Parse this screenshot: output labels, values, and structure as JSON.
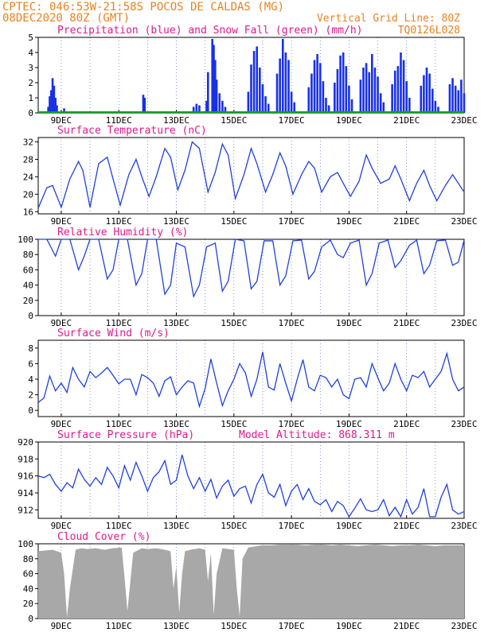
{
  "header": {
    "line1": "CPTEC:  046:53W-21:58S  POCOS DE CALDAS (MG)",
    "line2": "08DEC2020 80Z (GMT)",
    "grid_note": "Vertical Grid Line: 80Z",
    "code": "TQ0126L028"
  },
  "colors": {
    "header_orange": "#e8821e",
    "title_magenta": "#e0198c",
    "line_blue": "#2040e0",
    "bar_blue": "#1830e8",
    "snow_green": "#10a020",
    "cloud_gray": "#a8a8a8",
    "grid_blue": "#3050d8"
  },
  "x_axis": {
    "day_ticks": [
      {
        "label": "9DEC",
        "day": 9
      },
      {
        "label": "11DEC",
        "day": 11
      },
      {
        "label": "13DEC",
        "day": 13
      },
      {
        "label": "15DEC",
        "day": 15
      },
      {
        "label": "17DEC",
        "day": 17
      },
      {
        "label": "19DEC",
        "day": 19
      },
      {
        "label": "21DEC",
        "day": 21
      },
      {
        "label": "23DEC",
        "day": 23
      }
    ]
  },
  "chart_data": [
    {
      "type": "bar",
      "title": "Precipitation (blue) and Snow Fall (green) (mm/h)",
      "ylim": [
        0,
        5
      ],
      "yticks": [
        0,
        1,
        2,
        3,
        4,
        5
      ],
      "series": [
        {
          "name": "Precipitation",
          "x": [
            8.55,
            8.6,
            8.65,
            8.7,
            8.75,
            8.8,
            8.85,
            9.1,
            11.85,
            11.9,
            13.6,
            13.7,
            13.8,
            14.05,
            14.1,
            14.25,
            14.3,
            14.35,
            14.4,
            14.5,
            14.6,
            14.7,
            15.5,
            15.6,
            15.7,
            15.8,
            15.9,
            16.0,
            16.1,
            16.2,
            16.5,
            16.6,
            16.7,
            16.8,
            16.9,
            17.0,
            17.1,
            17.6,
            17.7,
            17.8,
            17.9,
            18.0,
            18.1,
            18.2,
            18.3,
            18.5,
            18.6,
            18.7,
            18.8,
            18.9,
            19.0,
            19.1,
            19.4,
            19.5,
            19.6,
            19.7,
            19.8,
            19.9,
            20.0,
            20.1,
            20.2,
            20.5,
            20.6,
            20.7,
            20.8,
            20.9,
            21.0,
            21.1,
            21.5,
            21.6,
            21.7,
            21.8,
            21.9,
            22.0,
            22.1,
            22.5,
            22.6,
            22.7,
            22.8,
            22.9,
            23.0
          ],
          "values": [
            0.4,
            1.1,
            1.5,
            2.3,
            1.8,
            1.0,
            0.5,
            0.3,
            1.2,
            1.0,
            0.4,
            0.6,
            0.5,
            0.8,
            2.7,
            4.9,
            4.5,
            3.5,
            2.2,
            1.3,
            0.8,
            0.4,
            1.4,
            3.2,
            4.1,
            4.4,
            3.0,
            1.9,
            1.1,
            0.6,
            2.6,
            3.6,
            4.9,
            4.0,
            3.5,
            1.4,
            0.7,
            1.7,
            2.6,
            3.5,
            3.9,
            3.3,
            2.1,
            1.0,
            0.5,
            2.0,
            2.9,
            3.8,
            4.0,
            3.1,
            1.8,
            0.9,
            2.2,
            3.0,
            3.3,
            2.7,
            3.9,
            3.0,
            2.4,
            1.3,
            0.7,
            1.9,
            2.8,
            3.1,
            4.0,
            3.5,
            2.1,
            1.0,
            1.8,
            2.5,
            3.0,
            2.6,
            1.6,
            0.8,
            0.4,
            1.9,
            2.3,
            1.8,
            1.5,
            2.2,
            1.3
          ]
        },
        {
          "name": "Snow Fall",
          "x": [
            8.2,
            23.0
          ],
          "values": [
            0,
            0
          ]
        }
      ]
    },
    {
      "type": "line",
      "title": "Surface Temperature (nC)",
      "ylim": [
        15.5,
        33
      ],
      "yticks": [
        16,
        20,
        24,
        28,
        32
      ],
      "x": [
        8.2,
        8.5,
        8.7,
        9.0,
        9.3,
        9.6,
        9.75,
        10.0,
        10.3,
        10.6,
        10.8,
        11.05,
        11.35,
        11.6,
        11.8,
        12.05,
        12.3,
        12.6,
        12.8,
        13.05,
        13.3,
        13.55,
        13.8,
        14.1,
        14.35,
        14.6,
        14.8,
        15.05,
        15.35,
        15.6,
        15.8,
        16.1,
        16.35,
        16.6,
        16.8,
        17.05,
        17.35,
        17.6,
        17.8,
        18.05,
        18.35,
        18.6,
        18.8,
        19.05,
        19.35,
        19.6,
        19.8,
        20.1,
        20.4,
        20.6,
        20.8,
        21.1,
        21.35,
        21.6,
        21.8,
        22.05,
        22.35,
        22.6,
        22.8,
        23.0
      ],
      "values": [
        16.8,
        21.5,
        22.0,
        17.0,
        23.5,
        27.5,
        25.5,
        17.0,
        27.0,
        28.5,
        23.5,
        17.5,
        24.5,
        28.0,
        24.0,
        19.5,
        24.0,
        30.5,
        28.5,
        21.0,
        25.5,
        32.0,
        30.5,
        20.5,
        25.0,
        31.5,
        29.0,
        19.0,
        24.5,
        30.5,
        27.0,
        20.5,
        24.5,
        29.5,
        26.5,
        20.0,
        24.5,
        27.5,
        26.0,
        20.5,
        24.0,
        25.0,
        22.5,
        19.5,
        23.0,
        29.0,
        26.0,
        22.5,
        23.5,
        26.5,
        23.5,
        18.5,
        22.5,
        25.5,
        22.0,
        18.5,
        22.0,
        24.5,
        22.5,
        20.5
      ]
    },
    {
      "type": "line",
      "title": "Relative Humidity (%)",
      "ylim": [
        0,
        100
      ],
      "yticks": [
        0,
        20,
        40,
        60,
        80,
        100
      ],
      "x": [
        8.2,
        8.5,
        8.8,
        9.0,
        9.3,
        9.6,
        9.8,
        10.0,
        10.3,
        10.6,
        10.8,
        11.0,
        11.3,
        11.6,
        11.8,
        12.0,
        12.3,
        12.6,
        12.8,
        13.0,
        13.3,
        13.6,
        13.8,
        14.05,
        14.35,
        14.6,
        14.8,
        15.05,
        15.35,
        15.6,
        15.8,
        16.05,
        16.35,
        16.6,
        16.8,
        17.05,
        17.35,
        17.6,
        17.8,
        18.05,
        18.35,
        18.6,
        18.8,
        19.05,
        19.35,
        19.6,
        19.8,
        20.05,
        20.35,
        20.6,
        20.8,
        21.1,
        21.35,
        21.6,
        21.8,
        22.05,
        22.35,
        22.6,
        22.8,
        23.0
      ],
      "values": [
        100,
        100,
        78,
        100,
        100,
        60,
        78,
        100,
        100,
        48,
        60,
        100,
        100,
        40,
        55,
        100,
        100,
        28,
        40,
        95,
        90,
        25,
        40,
        90,
        95,
        32,
        45,
        100,
        98,
        35,
        45,
        98,
        98,
        40,
        52,
        98,
        99,
        48,
        58,
        90,
        99,
        80,
        76,
        95,
        99,
        40,
        55,
        95,
        99,
        63,
        72,
        92,
        99,
        55,
        66,
        98,
        99,
        66,
        70,
        99
      ]
    },
    {
      "type": "line",
      "title": "Surface Wind (m/s)",
      "ylim": [
        -0.8,
        9
      ],
      "yticks": [
        0,
        2,
        4,
        6,
        8
      ],
      "x": [
        8.2,
        8.4,
        8.6,
        8.8,
        9.0,
        9.2,
        9.4,
        9.6,
        9.8,
        10.0,
        10.2,
        10.4,
        10.6,
        10.8,
        11.0,
        11.2,
        11.4,
        11.6,
        11.8,
        12.0,
        12.2,
        12.4,
        12.6,
        12.8,
        13.0,
        13.2,
        13.4,
        13.6,
        13.8,
        14.0,
        14.2,
        14.4,
        14.6,
        14.8,
        15.0,
        15.2,
        15.4,
        15.6,
        15.8,
        16.0,
        16.2,
        16.4,
        16.6,
        16.8,
        17.0,
        17.2,
        17.4,
        17.6,
        17.8,
        18.0,
        18.2,
        18.4,
        18.6,
        18.8,
        19.0,
        19.2,
        19.4,
        19.6,
        19.8,
        20.0,
        20.2,
        20.4,
        20.6,
        20.8,
        21.0,
        21.2,
        21.4,
        21.6,
        21.8,
        22.0,
        22.2,
        22.4,
        22.6,
        22.8,
        23.0
      ],
      "values": [
        1.0,
        1.6,
        4.4,
        2.5,
        3.5,
        2.3,
        5.5,
        4.0,
        3.0,
        5.0,
        4.2,
        4.8,
        5.5,
        4.5,
        3.4,
        4.0,
        4.0,
        2.0,
        4.6,
        4.2,
        3.5,
        1.8,
        3.8,
        4.3,
        2.0,
        3.0,
        3.8,
        3.5,
        0.5,
        2.8,
        6.6,
        3.5,
        0.6,
        2.5,
        4.0,
        6.0,
        4.8,
        1.8,
        4.0,
        7.5,
        3.0,
        2.6,
        6.0,
        3.5,
        1.2,
        4.0,
        6.5,
        3.0,
        2.5,
        4.5,
        4.2,
        3.0,
        4.0,
        2.0,
        1.5,
        4.0,
        4.2,
        3.0,
        6.0,
        4.2,
        2.5,
        3.5,
        6.0,
        4.0,
        2.5,
        4.5,
        4.2,
        5.0,
        3.0,
        4.0,
        5.0,
        7.3,
        4.0,
        2.5,
        3.0
      ]
    },
    {
      "type": "line",
      "title": "Surface Pressure (hPa)",
      "annotation": "Model Altitude: 868.311 m",
      "ylim": [
        911,
        920
      ],
      "yticks": [
        912,
        914,
        916,
        918,
        920
      ],
      "x": [
        8.2,
        8.4,
        8.6,
        8.8,
        9.0,
        9.2,
        9.4,
        9.6,
        9.8,
        10.0,
        10.2,
        10.4,
        10.6,
        10.8,
        11.0,
        11.2,
        11.4,
        11.6,
        11.8,
        12.0,
        12.2,
        12.4,
        12.6,
        12.8,
        13.0,
        13.2,
        13.4,
        13.6,
        13.8,
        14.0,
        14.2,
        14.4,
        14.6,
        14.8,
        15.0,
        15.2,
        15.4,
        15.6,
        15.8,
        16.0,
        16.2,
        16.4,
        16.6,
        16.8,
        17.0,
        17.2,
        17.4,
        17.6,
        17.8,
        18.0,
        18.2,
        18.4,
        18.6,
        18.8,
        19.0,
        19.2,
        19.4,
        19.6,
        19.8,
        20.0,
        20.2,
        20.4,
        20.6,
        20.8,
        21.0,
        21.2,
        21.4,
        21.6,
        21.8,
        22.0,
        22.2,
        22.4,
        22.6,
        22.8,
        23.0
      ],
      "values": [
        916.0,
        915.8,
        916.2,
        915.0,
        914.2,
        915.2,
        914.6,
        916.8,
        915.6,
        914.8,
        915.8,
        915.0,
        917.0,
        916.0,
        914.6,
        917.2,
        915.5,
        917.6,
        916.0,
        914.2,
        915.8,
        916.5,
        917.8,
        915.0,
        915.5,
        918.5,
        916.0,
        914.5,
        915.8,
        914.2,
        915.6,
        913.4,
        914.8,
        915.5,
        913.6,
        914.5,
        914.8,
        912.8,
        915.0,
        916.2,
        914.0,
        913.5,
        915.0,
        912.5,
        914.2,
        915.0,
        913.2,
        914.5,
        913.0,
        912.6,
        913.2,
        911.8,
        913.0,
        912.5,
        911.2,
        912.2,
        913.3,
        912.0,
        911.8,
        912.0,
        913.2,
        911.3,
        912.3,
        911.2,
        913.2,
        911.5,
        912.3,
        914.5,
        911.2,
        911.2,
        913.5,
        915.0,
        912.0,
        911.5,
        911.8
      ]
    },
    {
      "type": "area",
      "title": "Cloud Cover (%)",
      "ylim": [
        0,
        100
      ],
      "yticks": [
        0,
        20,
        40,
        60,
        80,
        100
      ],
      "x": [
        8.2,
        8.7,
        9.0,
        9.1,
        9.2,
        9.3,
        9.5,
        9.7,
        9.9,
        10.2,
        10.5,
        10.8,
        11.1,
        11.2,
        11.3,
        11.5,
        11.8,
        12.0,
        12.3,
        12.6,
        12.8,
        12.9,
        13.0,
        13.1,
        13.2,
        13.3,
        13.5,
        13.8,
        14.0,
        14.1,
        14.2,
        14.3,
        14.4,
        14.6,
        14.8,
        15.0,
        15.1,
        15.2,
        15.3,
        15.5,
        15.8,
        16.0,
        16.3,
        16.6,
        16.9,
        17.2,
        17.5,
        17.8,
        18.1,
        18.4,
        18.7,
        19.0,
        19.3,
        19.6,
        19.9,
        20.2,
        20.5,
        20.8,
        21.1,
        21.4,
        21.7,
        22.0,
        22.3,
        22.6,
        23.0
      ],
      "values": [
        90,
        92,
        88,
        60,
        2,
        40,
        92,
        94,
        93,
        94,
        92,
        94,
        95,
        55,
        10,
        88,
        94,
        93,
        94,
        92,
        90,
        40,
        70,
        8,
        60,
        90,
        92,
        94,
        92,
        50,
        88,
        5,
        60,
        94,
        93,
        92,
        40,
        3,
        80,
        95,
        97,
        98,
        98,
        99,
        99,
        99,
        98,
        99,
        99,
        98,
        99,
        98,
        97,
        98,
        99,
        98,
        97,
        98,
        98,
        99,
        98,
        97,
        98,
        98,
        98
      ]
    }
  ]
}
